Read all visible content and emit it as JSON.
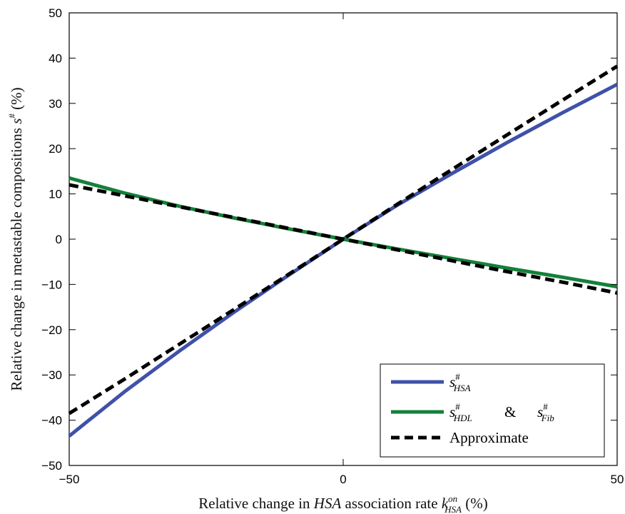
{
  "chart_data": {
    "type": "line",
    "xlabel": {
      "prefix": "Relative change in ",
      "italic": "HSA",
      "middle": " association rate ",
      "symbol": "k",
      "superscript": "on",
      "subscript": "HSA",
      "suffix": " (%)"
    },
    "ylabel": {
      "prefix": "Relative change in metastable compositions ",
      "symbol": "s",
      "superscript": "#",
      "suffix": " (%)"
    },
    "xlim": [
      -50,
      50
    ],
    "ylim": [
      -50,
      50
    ],
    "xticks": [
      -50,
      0,
      50
    ],
    "yticks": [
      -50,
      -40,
      -30,
      -20,
      -10,
      0,
      10,
      20,
      30,
      40,
      50
    ],
    "grid": false,
    "legend_position": "bottom-right",
    "legend": [
      {
        "symbol": "s",
        "superscript": "#",
        "subscript": "HSA"
      },
      {
        "symbol": "s",
        "superscript": "#",
        "subscript": "HDL",
        "connector": "&",
        "symbol2": "s",
        "superscript2": "#",
        "subscript2": "Fib"
      },
      {
        "text": "Approximate"
      }
    ],
    "series": [
      {
        "color": "#3F51A8",
        "style": "solid",
        "x": [
          -50,
          -40,
          -30,
          -20,
          -10,
          0,
          10,
          20,
          30,
          40,
          50
        ],
        "y": [
          -43.5,
          -33.8,
          -24.8,
          -16.2,
          -8.0,
          0,
          7.6,
          14.6,
          21.4,
          27.9,
          34.2
        ]
      },
      {
        "color": "#14803A",
        "style": "solid",
        "x": [
          -50,
          -40,
          -30,
          -20,
          -10,
          0,
          10,
          20,
          30,
          40,
          50
        ],
        "y": [
          13.5,
          10.2,
          7.3,
          4.7,
          2.3,
          0,
          -2.2,
          -4.3,
          -6.4,
          -8.4,
          -10.5
        ]
      },
      {
        "color": "#000000",
        "style": "dashed",
        "x": [
          -50,
          -40,
          -30,
          -20,
          -10,
          0,
          10,
          20,
          30,
          40,
          50
        ],
        "y": [
          -38.5,
          -31.0,
          -23.3,
          -15.6,
          -7.8,
          0,
          7.8,
          15.5,
          23.1,
          30.7,
          38.2
        ]
      },
      {
        "color": "#000000",
        "style": "dashed",
        "x": [
          -50,
          -40,
          -30,
          -20,
          -10,
          0,
          10,
          20,
          30,
          40,
          50
        ],
        "y": [
          12.0,
          9.6,
          7.2,
          4.8,
          2.4,
          0,
          -2.4,
          -4.8,
          -7.2,
          -9.5,
          -11.9
        ]
      }
    ]
  }
}
